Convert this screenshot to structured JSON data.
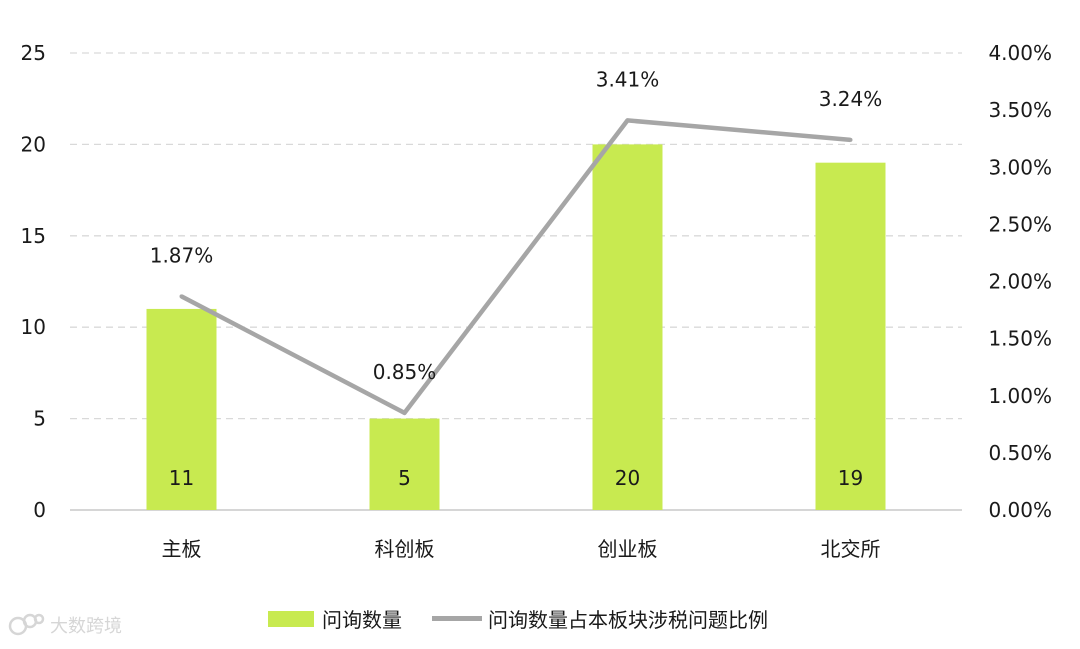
{
  "chart_data": {
    "type": "bar",
    "categories": [
      "主板",
      "科创板",
      "创业板",
      "北交所"
    ],
    "series": [
      {
        "name": "问询数量",
        "type": "bar",
        "axis": "left",
        "values": [
          11,
          5,
          20,
          19
        ],
        "color": "#c8ea50"
      },
      {
        "name": "问询数量占本板块涉税问题比例",
        "type": "line",
        "axis": "right",
        "values": [
          1.87,
          0.85,
          3.41,
          3.24
        ],
        "value_labels": [
          "1.87%",
          "0.85%",
          "3.41%",
          "3.24%"
        ],
        "color": "#a6a6a6"
      }
    ],
    "left_axis": {
      "ylim": [
        0,
        25
      ],
      "ticks": [
        "0",
        "5",
        "10",
        "15",
        "20",
        "25"
      ]
    },
    "right_axis": {
      "ylim": [
        0,
        4
      ],
      "ticks": [
        "0.00%",
        "0.50%",
        "1.00%",
        "1.50%",
        "2.00%",
        "2.50%",
        "3.00%",
        "3.50%",
        "4.00%"
      ]
    },
    "grid": true,
    "legend_position": "bottom"
  },
  "watermark": {
    "text": "大数跨境"
  }
}
